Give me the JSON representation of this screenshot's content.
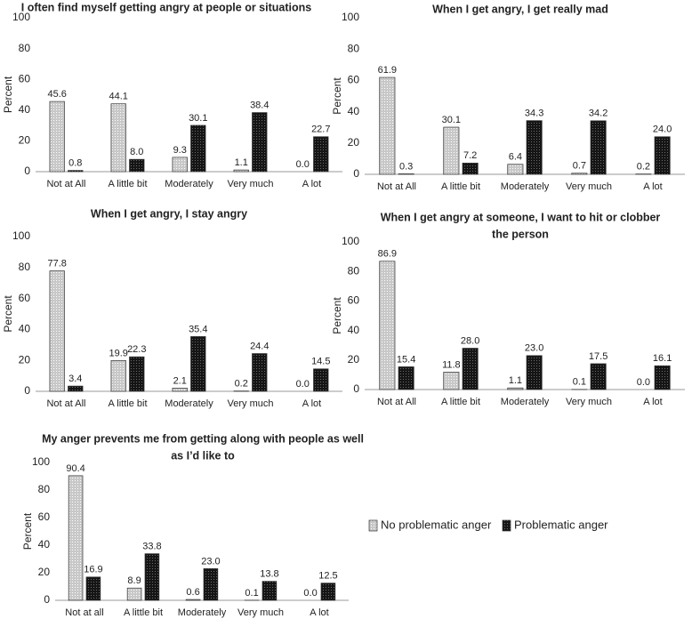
{
  "chart_data": [
    {
      "type": "bar",
      "title": [
        "I often find myself getting angry at people or situations"
      ],
      "y_label": "Percent",
      "categories": [
        "Not at All",
        "A little bit",
        "Moderately",
        "Very much",
        "A lot"
      ],
      "series": [
        {
          "name": "No problematic anger",
          "color": "#c8c8c8",
          "values": [
            45.6,
            44.1,
            9.3,
            1.1,
            0.0
          ],
          "value_labels": [
            "45.6",
            "44.1",
            "9.3",
            "1.1",
            "0.0"
          ]
        },
        {
          "name": "Problematic anger",
          "color": "#151515",
          "values": [
            0.8,
            8.0,
            30.1,
            38.4,
            22.7
          ],
          "value_labels": [
            "0.8",
            "8.0",
            "30.1",
            "38.4",
            "22.7"
          ]
        }
      ],
      "ylim": [
        0,
        100
      ],
      "yticks": [
        0,
        20,
        40,
        60,
        80,
        100
      ],
      "grid": false
    },
    {
      "type": "bar",
      "title": [
        "When I get angry, I get really mad"
      ],
      "y_label": "Percent",
      "categories": [
        "Not at All",
        "A little bit",
        "Moderately",
        "Very much",
        "A lot"
      ],
      "series": [
        {
          "name": "No problematic anger",
          "color": "#c8c8c8",
          "values": [
            61.9,
            30.1,
            6.4,
            0.7,
            0.2
          ],
          "value_labels": [
            "61.9",
            "30.1",
            "6.4",
            "0.7",
            "0.2"
          ]
        },
        {
          "name": "Problematic anger",
          "color": "#151515",
          "values": [
            0.3,
            7.2,
            34.3,
            34.2,
            24.0
          ],
          "value_labels": [
            "0.3",
            "7.2",
            "34.3",
            "34.2",
            "24.0"
          ]
        }
      ],
      "ylim": [
        0,
        100
      ],
      "yticks": [
        0,
        20,
        40,
        60,
        80,
        100
      ],
      "grid": false
    },
    {
      "type": "bar",
      "title": [
        "When I get angry, I stay angry"
      ],
      "y_label": "Percent",
      "categories": [
        "Not at All",
        "A little bit",
        "Moderately",
        "Very much",
        "A lot"
      ],
      "series": [
        {
          "name": "No problematic anger",
          "color": "#c8c8c8",
          "values": [
            77.8,
            19.9,
            2.1,
            0.2,
            0.0
          ],
          "value_labels": [
            "77.8",
            "19.9",
            "2.1",
            "0.2",
            "0.0"
          ]
        },
        {
          "name": "Problematic anger",
          "color": "#151515",
          "values": [
            3.4,
            22.3,
            35.4,
            24.4,
            14.5
          ],
          "value_labels": [
            "3.4",
            "22.3",
            "35.4",
            "24.4",
            "14.5"
          ]
        }
      ],
      "ylim": [
        0,
        100
      ],
      "yticks": [
        0,
        20,
        40,
        60,
        80,
        100
      ],
      "grid": false
    },
    {
      "type": "bar",
      "title": [
        "When I get angry at someone, I want to hit or clobber",
        "the  person"
      ],
      "y_label": "Percent",
      "categories": [
        "Not at All",
        "A little bit",
        "Moderately",
        "Very much",
        "A lot"
      ],
      "series": [
        {
          "name": "No problematic anger",
          "color": "#c8c8c8",
          "values": [
            86.9,
            11.8,
            1.1,
            0.1,
            0.0
          ],
          "value_labels": [
            "86.9",
            "11.8",
            "1.1",
            "0.1",
            "0.0"
          ]
        },
        {
          "name": "Problematic anger",
          "color": "#151515",
          "values": [
            15.4,
            28.0,
            23.0,
            17.5,
            16.1
          ],
          "value_labels": [
            "15.4",
            "28.0",
            "23.0",
            "17.5",
            "16.1"
          ]
        }
      ],
      "ylim": [
        0,
        100
      ],
      "yticks": [
        0,
        20,
        40,
        60,
        80,
        100
      ],
      "grid": false
    },
    {
      "type": "bar",
      "title": [
        "My anger prevents me from getting along with people as well",
        "as I’d like to"
      ],
      "y_label": "Percent",
      "categories": [
        "Not at all",
        "A little bit",
        "Moderately",
        "Very much",
        "A lot"
      ],
      "series": [
        {
          "name": "No problematic anger",
          "color": "#c8c8c8",
          "values": [
            90.4,
            8.9,
            0.6,
            0.1,
            0.0
          ],
          "value_labels": [
            "90.4",
            "8.9",
            "0.6",
            "0.1",
            "0.0"
          ]
        },
        {
          "name": "Problematic anger",
          "color": "#151515",
          "values": [
            16.9,
            33.8,
            23.0,
            13.8,
            12.5
          ],
          "value_labels": [
            "16.9",
            "33.8",
            "23.0",
            "13.8",
            "12.5"
          ]
        }
      ],
      "ylim": [
        0,
        100
      ],
      "yticks": [
        0,
        20,
        40,
        60,
        80,
        100
      ],
      "grid": false
    }
  ]
}
